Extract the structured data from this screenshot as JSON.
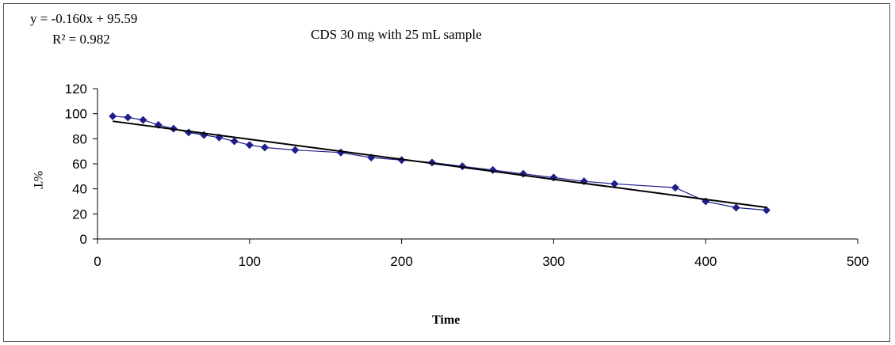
{
  "chart_data": {
    "type": "scatter",
    "title": "CDS 30 mg with 25 mL sample",
    "xlabel": "Time",
    "ylabel": "%T",
    "xlim": [
      0,
      500
    ],
    "ylim": [
      0,
      120
    ],
    "xticks": [
      0,
      100,
      200,
      300,
      400,
      500
    ],
    "yticks": [
      0,
      20,
      40,
      60,
      80,
      100,
      120
    ],
    "grid": false,
    "legend": "none",
    "trendline": {
      "equation": "y = -0.160x + 95.59",
      "r2": "R² = 0.982",
      "slope": -0.16,
      "intercept": 95.59,
      "x_range": [
        10,
        440
      ],
      "color": "#000000"
    },
    "series": [
      {
        "color": "#1f1f8c",
        "x": [
          10,
          20,
          30,
          40,
          50,
          60,
          70,
          80,
          90,
          100,
          110,
          130,
          160,
          180,
          200,
          220,
          240,
          260,
          280,
          300,
          320,
          340,
          380,
          400,
          420,
          440
        ],
        "y": [
          98,
          97,
          95,
          91,
          88,
          85,
          83,
          81,
          78,
          75,
          73,
          71,
          69,
          65,
          63,
          61,
          58,
          55,
          52,
          49,
          46,
          44,
          41,
          30,
          25,
          23
        ]
      }
    ]
  }
}
